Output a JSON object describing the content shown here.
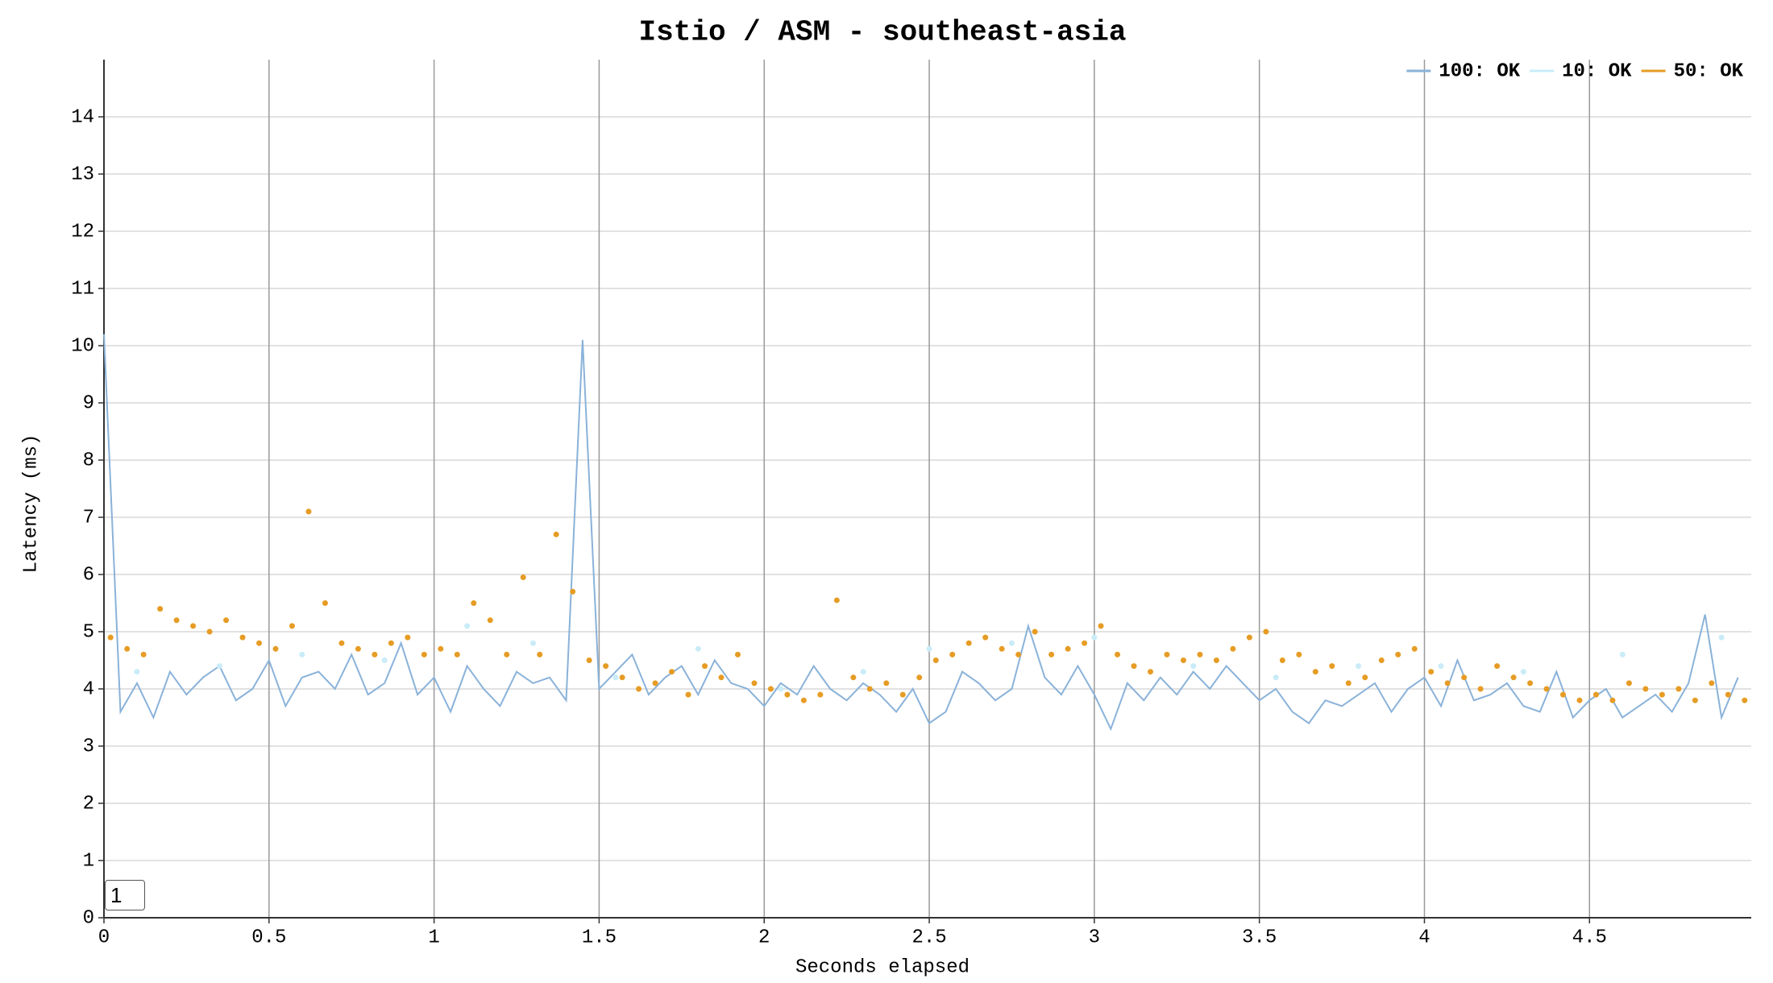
{
  "chart_data": {
    "type": "line",
    "title": "Istio / ASM - southeast-asia",
    "x_label": "Seconds elapsed",
    "y_label": "Latency (ms)",
    "xlim": [
      0,
      4.99
    ],
    "ylim": [
      0,
      15
    ],
    "xticks": [
      0,
      0.5,
      1,
      1.5,
      2,
      2.5,
      3,
      3.5,
      4,
      4.5
    ],
    "yticks": [
      0,
      1,
      2,
      3,
      4,
      5,
      6,
      7,
      8,
      9,
      10,
      11,
      12,
      13,
      14
    ],
    "grid": true,
    "legend": "top-right",
    "series": [
      {
        "name": "100: OK",
        "color": "#8ab2d9",
        "mode": "line",
        "x": [
          0,
          0.05,
          0.1,
          0.15,
          0.2,
          0.25,
          0.3,
          0.35,
          0.4,
          0.45,
          0.5,
          0.55,
          0.6,
          0.65,
          0.7,
          0.75,
          0.8,
          0.85,
          0.9,
          0.95,
          1,
          1.05,
          1.1,
          1.15,
          1.2,
          1.25,
          1.3,
          1.35,
          1.4,
          1.45,
          1.5,
          1.55,
          1.6,
          1.65,
          1.7,
          1.75,
          1.8,
          1.85,
          1.9,
          1.95,
          2,
          2.05,
          2.1,
          2.15,
          2.2,
          2.25,
          2.3,
          2.35,
          2.4,
          2.45,
          2.5,
          2.55,
          2.6,
          2.65,
          2.7,
          2.75,
          2.8,
          2.85,
          2.9,
          2.95,
          3,
          3.05,
          3.1,
          3.15,
          3.2,
          3.25,
          3.3,
          3.35,
          3.4,
          3.45,
          3.5,
          3.55,
          3.6,
          3.65,
          3.7,
          3.75,
          3.8,
          3.85,
          3.9,
          3.95,
          4,
          4.05,
          4.1,
          4.15,
          4.2,
          4.25,
          4.3,
          4.35,
          4.4,
          4.45,
          4.5,
          4.55,
          4.6,
          4.65,
          4.7,
          4.75,
          4.8,
          4.85,
          4.9,
          4.95
        ],
        "values": [
          10.2,
          3.6,
          4.1,
          3.5,
          4.3,
          3.9,
          4.2,
          4.4,
          3.8,
          4.0,
          4.5,
          3.7,
          4.2,
          4.3,
          4.0,
          4.6,
          3.9,
          4.1,
          4.8,
          3.9,
          4.2,
          3.6,
          4.4,
          4.0,
          3.7,
          4.3,
          4.1,
          4.2,
          3.8,
          10.1,
          4.0,
          4.3,
          4.6,
          3.9,
          4.2,
          4.4,
          3.9,
          4.5,
          4.1,
          4.0,
          3.7,
          4.1,
          3.9,
          4.4,
          4.0,
          3.8,
          4.1,
          3.9,
          3.6,
          4.0,
          3.4,
          3.6,
          4.3,
          4.1,
          3.8,
          4.0,
          5.1,
          4.2,
          3.9,
          4.4,
          3.9,
          3.3,
          4.1,
          3.8,
          4.2,
          3.9,
          4.3,
          4.0,
          4.4,
          4.1,
          3.8,
          4.0,
          3.6,
          3.4,
          3.8,
          3.7,
          3.9,
          4.1,
          3.6,
          4.0,
          4.2,
          3.7,
          4.5,
          3.8,
          3.9,
          4.1,
          3.7,
          3.6,
          4.3,
          3.5,
          3.8,
          4.0,
          3.5,
          3.7,
          3.9,
          3.6,
          4.1,
          5.3,
          3.5,
          4.2
        ]
      },
      {
        "name": "10: OK",
        "color": "#c9ecf8",
        "mode": "markers",
        "x": [
          0.1,
          0.35,
          0.6,
          0.85,
          1.1,
          1.3,
          1.55,
          1.8,
          2.05,
          2.3,
          2.5,
          2.75,
          3.0,
          3.3,
          3.55,
          3.8,
          4.05,
          4.3,
          4.6,
          4.9
        ],
        "values": [
          4.3,
          4.4,
          4.6,
          4.5,
          5.1,
          4.8,
          4.2,
          4.7,
          4.0,
          4.3,
          4.7,
          4.8,
          4.9,
          4.4,
          4.2,
          4.4,
          4.4,
          4.3,
          4.6,
          4.9
        ]
      },
      {
        "name": "50: OK",
        "color": "#e69c24",
        "mode": "markers",
        "x": [
          0.02,
          0.07,
          0.12,
          0.17,
          0.22,
          0.27,
          0.32,
          0.37,
          0.42,
          0.47,
          0.52,
          0.57,
          0.62,
          0.67,
          0.72,
          0.77,
          0.82,
          0.87,
          0.92,
          0.97,
          1.02,
          1.07,
          1.12,
          1.17,
          1.22,
          1.27,
          1.32,
          1.37,
          1.42,
          1.47,
          1.52,
          1.57,
          1.62,
          1.67,
          1.72,
          1.77,
          1.82,
          1.87,
          1.92,
          1.97,
          2.02,
          2.07,
          2.12,
          2.17,
          2.22,
          2.27,
          2.32,
          2.37,
          2.42,
          2.47,
          2.52,
          2.57,
          2.62,
          2.67,
          2.72,
          2.77,
          2.82,
          2.87,
          2.92,
          2.97,
          3.02,
          3.07,
          3.12,
          3.17,
          3.22,
          3.27,
          3.32,
          3.37,
          3.42,
          3.47,
          3.52,
          3.57,
          3.62,
          3.67,
          3.72,
          3.77,
          3.82,
          3.87,
          3.92,
          3.97,
          4.02,
          4.07,
          4.12,
          4.17,
          4.22,
          4.27,
          4.32,
          4.37,
          4.42,
          4.47,
          4.52,
          4.57,
          4.62,
          4.67,
          4.72,
          4.77,
          4.82,
          4.87,
          4.92,
          4.97
        ],
        "values": [
          4.9,
          4.7,
          4.6,
          5.4,
          5.2,
          5.1,
          5.0,
          5.2,
          4.9,
          4.8,
          4.7,
          5.1,
          7.1,
          5.5,
          4.8,
          4.7,
          4.6,
          4.8,
          4.9,
          4.6,
          4.7,
          4.6,
          5.5,
          5.2,
          4.6,
          5.95,
          4.6,
          6.7,
          5.7,
          4.5,
          4.4,
          4.2,
          4.0,
          4.1,
          4.3,
          3.9,
          4.4,
          4.2,
          4.6,
          4.1,
          4.0,
          3.9,
          3.8,
          3.9,
          5.55,
          4.2,
          4.0,
          4.1,
          3.9,
          4.2,
          4.5,
          4.6,
          4.8,
          4.9,
          4.7,
          4.6,
          5.0,
          4.6,
          4.7,
          4.8,
          5.1,
          4.6,
          4.4,
          4.3,
          4.6,
          4.5,
          4.6,
          4.5,
          4.7,
          4.9,
          5.0,
          4.5,
          4.6,
          4.3,
          4.4,
          4.1,
          4.2,
          4.5,
          4.6,
          4.7,
          4.3,
          4.1,
          4.2,
          4.0,
          4.4,
          4.2,
          4.1,
          4.0,
          3.9,
          3.8,
          3.9,
          3.8,
          4.1,
          4.0,
          3.9,
          4.0,
          3.8,
          4.1,
          3.9,
          3.8
        ]
      }
    ]
  },
  "input": "1"
}
